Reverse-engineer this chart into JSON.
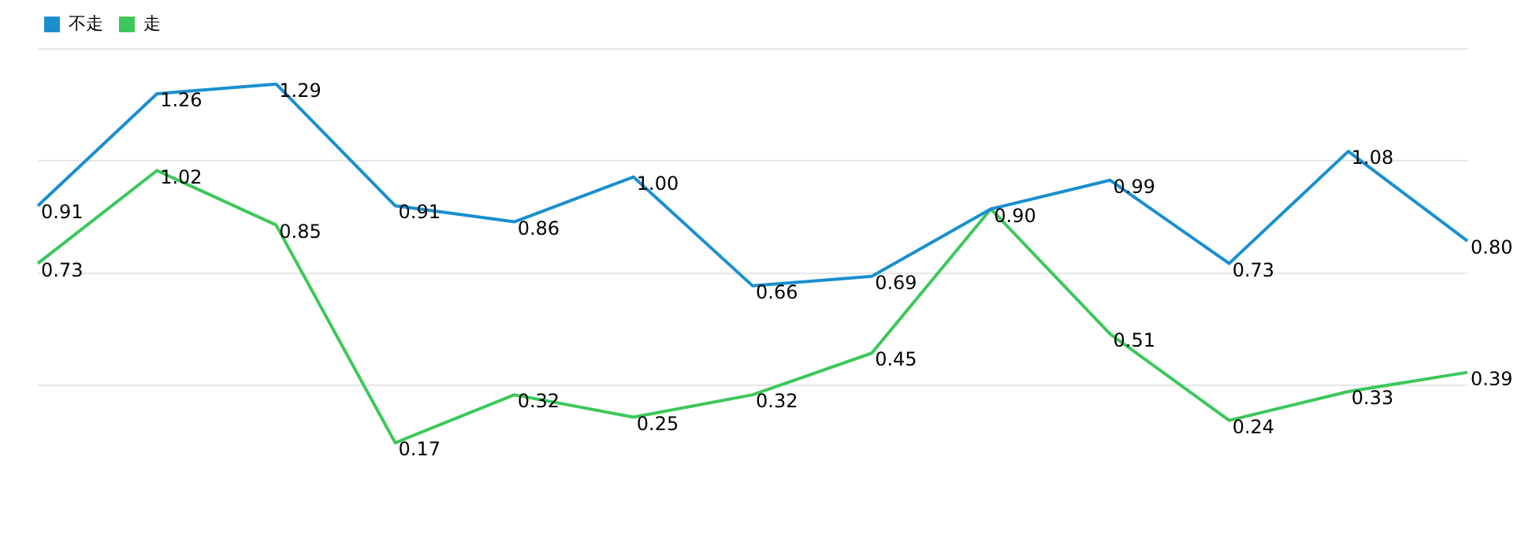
{
  "chart_data": {
    "type": "line",
    "categories": [
      null,
      null,
      null,
      null,
      null,
      null,
      null,
      null,
      null,
      null,
      null,
      null,
      null
    ],
    "series": [
      {
        "name": "不走",
        "color": "#1a8fcf",
        "values": [
          0.91,
          1.26,
          1.29,
          0.91,
          0.86,
          1.0,
          0.66,
          0.69,
          0.9,
          0.99,
          0.73,
          1.08,
          0.8
        ],
        "value_labels": [
          "0.91",
          "1.26",
          "1.29",
          "0.91",
          "0.86",
          "1.00",
          "0.66",
          "0.69",
          "0.90",
          "0.99",
          "0.73",
          "1.08",
          "0.80"
        ]
      },
      {
        "name": "走",
        "color": "#3cc85a",
        "values": [
          0.73,
          1.02,
          0.85,
          0.17,
          0.32,
          0.25,
          0.32,
          0.45,
          0.9,
          0.51,
          0.24,
          0.33,
          0.39
        ],
        "value_labels": [
          "0.73",
          "1.02",
          "0.85",
          "0.17",
          "0.32",
          "0.25",
          "0.32",
          "0.45",
          null,
          "0.51",
          "0.24",
          "0.33",
          "0.39"
        ]
      }
    ],
    "yticks": [
      {
        "value": 0.35,
        "label": null
      },
      {
        "value": 0.7,
        "label": null
      },
      {
        "value": 1.05,
        "label": null
      },
      {
        "value": 1.4,
        "label": null
      }
    ],
    "grid": "y",
    "legend": "top left",
    "marker": "none",
    "line_style": "solid"
  }
}
